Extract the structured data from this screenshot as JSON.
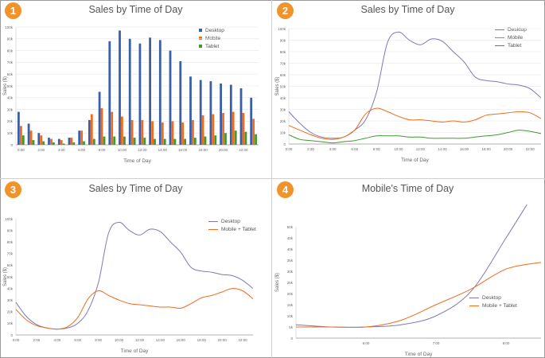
{
  "badges": [
    "1",
    "2",
    "3",
    "4"
  ],
  "colors": {
    "desktop": "#3a5fa8",
    "mobile": "#ef6c1d",
    "tablet": "#3e9a2e",
    "desktop_line": "#7a7ab8"
  },
  "chart_data": [
    {
      "type": "bar",
      "title": "Sales by Time of Day",
      "xlabel": "Time of Day",
      "ylabel": "Sales ($)",
      "ylim": [
        0,
        100000
      ],
      "yticks": [
        "0",
        "10k",
        "20k",
        "30k",
        "40k",
        "50k",
        "60k",
        "70k",
        "80k",
        "90k",
        "100k"
      ],
      "xticks": [
        "0:00",
        "2:00",
        "4:00",
        "6:00",
        "8:00",
        "10:00",
        "12:00",
        "14:00",
        "16:00",
        "18:00",
        "20:00",
        "22:00"
      ],
      "legend_position": "top-right",
      "grid": true,
      "categories": [
        "0",
        "1",
        "2",
        "3",
        "4",
        "5",
        "6",
        "7",
        "8",
        "9",
        "10",
        "11",
        "12",
        "13",
        "14",
        "15",
        "16",
        "17",
        "18",
        "19",
        "20",
        "21",
        "22",
        "23"
      ],
      "series": [
        {
          "name": "Desktop",
          "values": [
            28000,
            18000,
            10000,
            6000,
            5000,
            6000,
            12000,
            21000,
            45000,
            88000,
            97000,
            90000,
            86000,
            91000,
            89000,
            80000,
            71000,
            58000,
            55000,
            54000,
            52000,
            51000,
            48000,
            40000
          ]
        },
        {
          "name": "Mobile",
          "values": [
            16000,
            12000,
            8000,
            5000,
            4000,
            6000,
            12000,
            26000,
            31000,
            28000,
            24000,
            21000,
            21000,
            20000,
            19000,
            20000,
            19000,
            21000,
            25000,
            26000,
            27000,
            28000,
            27000,
            22000
          ]
        },
        {
          "name": "Tablet",
          "values": [
            8000,
            4000,
            3000,
            2000,
            1000,
            2000,
            3000,
            5000,
            7000,
            7000,
            7000,
            6000,
            6000,
            5000,
            5000,
            5000,
            5000,
            6000,
            7000,
            8000,
            10000,
            12000,
            11000,
            9000
          ]
        }
      ]
    },
    {
      "type": "line",
      "title": "Sales by Time of Day",
      "xlabel": "Time of Day",
      "ylabel": "Sales ($)",
      "ylim": [
        0,
        100000
      ],
      "yticks": [
        "0",
        "10k",
        "20k",
        "30k",
        "40k",
        "50k",
        "60k",
        "70k",
        "80k",
        "90k",
        "100k"
      ],
      "xticks": [
        "0:00",
        "2:00",
        "4:00",
        "6:00",
        "8:00",
        "10:00",
        "12:00",
        "14:00",
        "16:00",
        "18:00",
        "20:00",
        "22:00"
      ],
      "legend_position": "top-right",
      "grid": true,
      "x": [
        0,
        1,
        2,
        3,
        4,
        5,
        6,
        7,
        8,
        9,
        10,
        11,
        12,
        13,
        14,
        15,
        16,
        17,
        18,
        19,
        20,
        21,
        22,
        23
      ],
      "series": [
        {
          "name": "Desktop",
          "values": [
            28000,
            18000,
            10000,
            6000,
            5000,
            6000,
            12000,
            21000,
            45000,
            88000,
            97000,
            90000,
            86000,
            91000,
            89000,
            80000,
            71000,
            58000,
            55000,
            54000,
            52000,
            51000,
            48000,
            40000
          ]
        },
        {
          "name": "Mobile",
          "values": [
            16000,
            12000,
            8000,
            5000,
            4000,
            6000,
            12000,
            26000,
            31000,
            28000,
            24000,
            21000,
            21000,
            20000,
            19000,
            20000,
            19000,
            21000,
            25000,
            26000,
            27000,
            28000,
            27000,
            22000
          ]
        },
        {
          "name": "Tablet",
          "values": [
            8000,
            4000,
            3000,
            2000,
            1000,
            2000,
            3000,
            5000,
            7000,
            7000,
            7000,
            6000,
            6000,
            5000,
            5000,
            5000,
            5000,
            6000,
            7000,
            8000,
            10000,
            12000,
            11000,
            9000
          ]
        }
      ]
    },
    {
      "type": "line",
      "title": "Sales by Time of Day",
      "xlabel": "Time of Day",
      "ylabel": "Sales ($)",
      "ylim": [
        0,
        100000
      ],
      "yticks": [
        "0",
        "10k",
        "20k",
        "30k",
        "40k",
        "50k",
        "60k",
        "70k",
        "80k",
        "90k",
        "100k"
      ],
      "xticks": [
        "0:00",
        "2:00",
        "4:00",
        "6:00",
        "8:00",
        "10:00",
        "12:00",
        "14:00",
        "16:00",
        "18:00",
        "20:00",
        "22:00"
      ],
      "legend_position": "top-right",
      "grid": false,
      "x": [
        0,
        1,
        2,
        3,
        4,
        5,
        6,
        7,
        8,
        9,
        10,
        11,
        12,
        13,
        14,
        15,
        16,
        17,
        18,
        19,
        20,
        21,
        22,
        23
      ],
      "series": [
        {
          "name": "Desktop",
          "values": [
            28000,
            16000,
            9000,
            6000,
            5000,
            6000,
            10000,
            21000,
            45000,
            88000,
            97000,
            90000,
            86000,
            91000,
            89000,
            80000,
            71000,
            58000,
            55000,
            54000,
            52000,
            51000,
            47000,
            40000
          ]
        },
        {
          "name": "Mobile + Tablet",
          "values": [
            22000,
            13000,
            8000,
            6000,
            5000,
            7000,
            15000,
            31000,
            38000,
            34000,
            30000,
            27000,
            26000,
            25000,
            24000,
            24000,
            23000,
            27000,
            32000,
            34000,
            37000,
            40000,
            38000,
            31000
          ]
        }
      ]
    },
    {
      "type": "line",
      "title": "Mobile's Time of Day",
      "xlabel": "Time of Day",
      "ylabel": "Sales ($)",
      "ylim": [
        0,
        50000
      ],
      "xlim": [
        5,
        8.5
      ],
      "yticks": [
        "0",
        "5k",
        "10k",
        "15k",
        "20k",
        "25k",
        "30k",
        "35k",
        "40k",
        "45k",
        "50k"
      ],
      "xticks": [
        "6:00",
        "7:00",
        "8:00"
      ],
      "xtick_values": [
        6,
        7,
        8
      ],
      "legend_position": "bottom-right",
      "grid": false,
      "series": [
        {
          "name": "Desktop",
          "x": [
            5,
            5.5,
            6,
            6.5,
            7,
            7.5,
            8,
            8.3
          ],
          "values": [
            6000,
            5000,
            5000,
            6000,
            10000,
            21000,
            45000,
            60000
          ]
        },
        {
          "name": "Mobile + Tablet",
          "x": [
            5,
            5.5,
            6,
            6.5,
            7,
            7.5,
            8,
            8.5
          ],
          "values": [
            5000,
            5000,
            5000,
            8000,
            15000,
            22000,
            31000,
            34000
          ]
        }
      ]
    }
  ]
}
